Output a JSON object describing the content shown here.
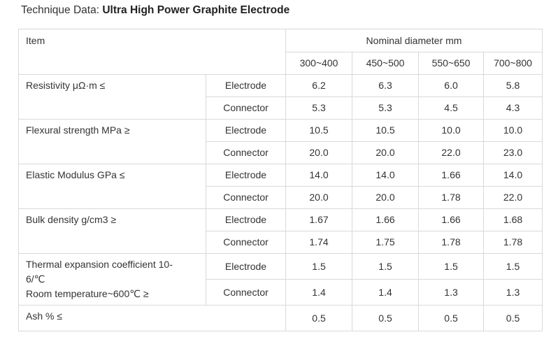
{
  "heading": {
    "prefix": "Technique Data: ",
    "title": "Ultra High Power Graphite Electrode"
  },
  "table": {
    "item_header": "Item",
    "group_header": "Nominal diameter mm",
    "columns": [
      "300~400",
      "450~500",
      "550~650",
      "700~800"
    ],
    "properties": [
      {
        "label": "Resistivity  μΩ·m ≤",
        "rows": [
          {
            "part": "Electrode",
            "values": [
              "6.2",
              "6.3",
              "6.0",
              "5.8"
            ]
          },
          {
            "part": "Connector",
            "values": [
              "5.3",
              "5.3",
              "4.5",
              "4.3"
            ]
          }
        ]
      },
      {
        "label": "Flexural strength MPa ≥",
        "rows": [
          {
            "part": "Electrode",
            "values": [
              "10.5",
              "10.5",
              "10.0",
              "10.0"
            ]
          },
          {
            "part": "Connector",
            "values": [
              "20.0",
              "20.0",
              "22.0",
              "23.0"
            ]
          }
        ]
      },
      {
        "label": "Elastic Modulus GPa ≤",
        "rows": [
          {
            "part": "Electrode",
            "values": [
              "14.0",
              "14.0",
              "1.66",
              "14.0"
            ]
          },
          {
            "part": "Connector",
            "values": [
              "20.0",
              "20.0",
              "1.78",
              "22.0"
            ]
          }
        ]
      },
      {
        "label": "Bulk density g/cm3 ≥",
        "rows": [
          {
            "part": "Electrode",
            "values": [
              "1.67",
              "1.66",
              "1.66",
              "1.68"
            ]
          },
          {
            "part": "Connector",
            "values": [
              "1.74",
              "1.75",
              "1.78",
              "1.78"
            ]
          }
        ]
      },
      {
        "label_lines": [
          "Thermal expansion coefficient 10-",
          "6/℃",
          "Room temperature~600℃ ≥"
        ],
        "rows": [
          {
            "part": "Electrode",
            "values": [
              "1.5",
              "1.5",
              "1.5",
              "1.5"
            ]
          },
          {
            "part": "Connector",
            "values": [
              "1.4",
              "1.4",
              "1.3",
              "1.3"
            ]
          }
        ]
      }
    ],
    "ash": {
      "label": "Ash % ≤",
      "values": [
        "0.5",
        "0.5",
        "0.5",
        "0.5"
      ]
    }
  },
  "colors": {
    "border": "#d9d9d9",
    "text": "#333333",
    "row_shade": "#f7f7f7"
  }
}
